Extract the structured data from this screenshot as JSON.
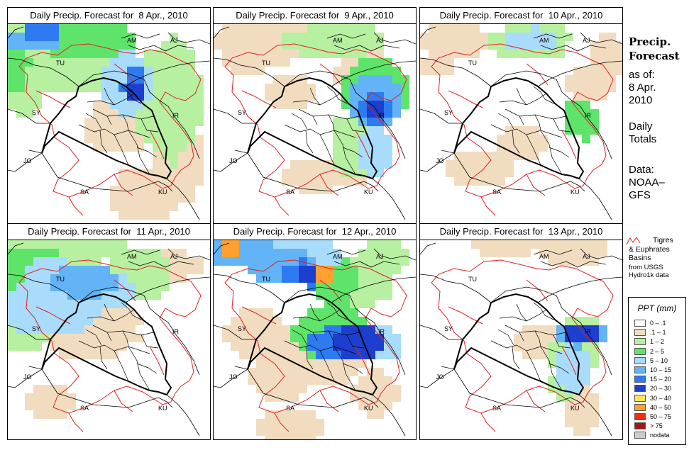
{
  "panels": [
    {
      "title": "Daily Precip. Forecast for  8 Apr., 2010",
      "pattern": "p8"
    },
    {
      "title": "Daily Precip. Forecast for  9 Apr., 2010",
      "pattern": "p9"
    },
    {
      "title": "Daily Precip. Forecast for  10 Apr., 2010",
      "pattern": "p10"
    },
    {
      "title": "Daily Precip. Forecast for  11 Apr., 2010",
      "pattern": "p11"
    },
    {
      "title": "Daily Precip. Forecast for  12 Apr., 2010",
      "pattern": "p12"
    },
    {
      "title": "Daily Precip. Forecast for  13 Apr., 2010",
      "pattern": "p13"
    }
  ],
  "country_labels": [
    "AM",
    "AJ",
    "TU",
    "SY",
    "IR",
    "JO",
    "SA",
    "KU"
  ],
  "sidebar": {
    "title_line1": "Precip.",
    "title_line2": "Forecast",
    "asof_line1": "as of:",
    "asof_line2": "8 Apr.",
    "asof_line3": "2010",
    "daily_line1": "Daily",
    "daily_line2": "Totals",
    "data_line1": "Data:",
    "data_line2": "NOAA–",
    "data_line3": "GFS"
  },
  "basin_legend": {
    "line1": "Tigres",
    "line2": "& Euphrates",
    "line3": "Basins",
    "line4": "from USGS",
    "line5": "Hydro1k data",
    "color": "#e02020"
  },
  "ppt_legend": {
    "title": "PPT (mm)",
    "items": [
      {
        "label": "0 – .1",
        "color": "#ffffff"
      },
      {
        "label": ".1 – 1",
        "color": "#f2dcc0"
      },
      {
        "label": "1 – 2",
        "color": "#b6f0a0"
      },
      {
        "label": "2 – 5",
        "color": "#5ee46a"
      },
      {
        "label": "5 – 10",
        "color": "#a8dcfa"
      },
      {
        "label": "10 – 15",
        "color": "#62b4f6"
      },
      {
        "label": "15 – 20",
        "color": "#2e7af0"
      },
      {
        "label": "20 – 30",
        "color": "#1d3fd0"
      },
      {
        "label": "30 – 40",
        "color": "#ffe650"
      },
      {
        "label": "40 – 50",
        "color": "#ffa030"
      },
      {
        "label": "50 – 75",
        "color": "#f03010"
      },
      {
        "label": "> 75",
        "color": "#a01818"
      },
      {
        "label": "nodata",
        "color": "#cccccc"
      }
    ]
  }
}
